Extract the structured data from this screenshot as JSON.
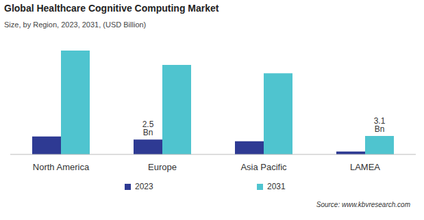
{
  "chart_data": {
    "type": "bar",
    "title": "Global Healthcare Cognitive Computing Market",
    "subtitle": "Size, by Region, 2023, 2031, (USD Billion)",
    "categories": [
      "North America",
      "Europe",
      "Asia Pacific",
      "LAMEA"
    ],
    "series": [
      {
        "name": "2023",
        "color": "#2e3a93",
        "values": [
          3.0,
          2.5,
          2.2,
          0.5
        ],
        "value_labels": [
          null,
          "2.5 Bn",
          null,
          null
        ]
      },
      {
        "name": "2031",
        "color": "#4fc4cf",
        "values": [
          17.4,
          15.0,
          13.6,
          3.1
        ],
        "value_labels": [
          null,
          null,
          null,
          "3.1 Bn"
        ]
      }
    ],
    "data_labels": true,
    "tick_labels": "x",
    "source": "Source: www.kbvresearch.com"
  }
}
